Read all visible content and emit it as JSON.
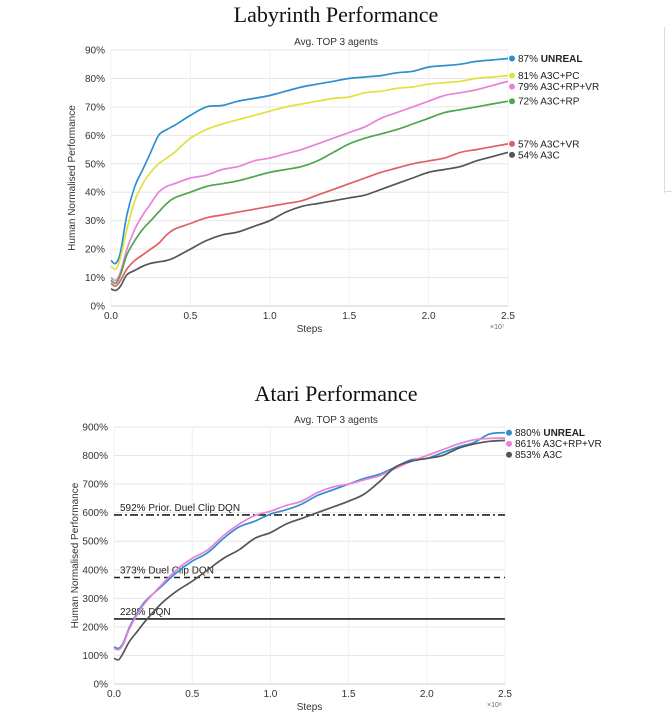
{
  "charts": [
    {
      "type": "line",
      "title": "Labyrinth Performance",
      "subtitle": "Avg. TOP 3 agents",
      "xlabel": "Steps",
      "ylabel": "Human Normalised Performance",
      "x_exponent": "×10⁷",
      "xlim": [
        0,
        2.5
      ],
      "ylim": [
        0,
        90
      ],
      "xticks": [
        "0.0",
        "0.5",
        "1.0",
        "1.5",
        "2.0",
        "2.5"
      ],
      "yticks": [
        "0%",
        "10%",
        "20%",
        "30%",
        "40%",
        "50%",
        "60%",
        "70%",
        "80%",
        "90%"
      ],
      "legend_placement": "right",
      "series": [
        {
          "name": "UNREAL",
          "label": "87%",
          "color": "#2e8fd0",
          "bold": true,
          "x": [
            0,
            0.03,
            0.06,
            0.1,
            0.15,
            0.2,
            0.25,
            0.3,
            0.35,
            0.4,
            0.5,
            0.6,
            0.7,
            0.8,
            0.9,
            1.0,
            1.1,
            1.2,
            1.3,
            1.4,
            1.5,
            1.6,
            1.7,
            1.8,
            1.9,
            2.0,
            2.1,
            2.2,
            2.3,
            2.4,
            2.5
          ],
          "y": [
            16,
            15,
            19,
            32,
            42,
            48,
            54,
            60,
            62,
            63.5,
            67,
            70,
            70.5,
            72,
            73,
            74,
            75.5,
            77,
            78,
            79,
            80,
            80.5,
            81,
            82,
            82.5,
            84,
            84.5,
            85,
            86,
            86.5,
            87
          ]
        },
        {
          "name": "A3C+PC",
          "label": "81%",
          "color": "#e0e040",
          "bold": false,
          "x": [
            0,
            0.03,
            0.06,
            0.1,
            0.15,
            0.2,
            0.25,
            0.3,
            0.35,
            0.4,
            0.5,
            0.6,
            0.7,
            0.8,
            0.9,
            1.0,
            1.1,
            1.2,
            1.3,
            1.4,
            1.5,
            1.6,
            1.7,
            1.8,
            1.9,
            2.0,
            2.1,
            2.2,
            2.3,
            2.4,
            2.5
          ],
          "y": [
            14,
            13,
            17,
            27,
            37,
            43,
            47,
            50,
            52,
            54,
            59,
            62,
            64,
            65.5,
            67,
            68.5,
            70,
            71,
            72,
            73,
            73.5,
            75,
            75.5,
            76.5,
            77,
            78,
            78.5,
            79,
            80,
            80.5,
            81
          ]
        },
        {
          "name": "A3C+RP+VR",
          "label": "79%",
          "color": "#e882d8",
          "bold": false,
          "x": [
            0,
            0.03,
            0.06,
            0.1,
            0.15,
            0.2,
            0.25,
            0.3,
            0.35,
            0.4,
            0.5,
            0.6,
            0.7,
            0.8,
            0.9,
            1.0,
            1.1,
            1.2,
            1.3,
            1.4,
            1.5,
            1.6,
            1.7,
            1.8,
            1.9,
            2.0,
            2.1,
            2.2,
            2.3,
            2.4,
            2.5
          ],
          "y": [
            10,
            9,
            12,
            20,
            27,
            32,
            36,
            40,
            42,
            43,
            45,
            46,
            48,
            49,
            51,
            52,
            53.5,
            55,
            57,
            59,
            61,
            63,
            66,
            68,
            70,
            72,
            74,
            75,
            76,
            77.5,
            79
          ]
        },
        {
          "name": "A3C+RP",
          "label": "72%",
          "color": "#4ca64c",
          "bold": false,
          "x": [
            0,
            0.03,
            0.06,
            0.1,
            0.15,
            0.2,
            0.25,
            0.3,
            0.35,
            0.4,
            0.5,
            0.6,
            0.7,
            0.8,
            0.9,
            1.0,
            1.1,
            1.2,
            1.3,
            1.4,
            1.5,
            1.6,
            1.7,
            1.8,
            1.9,
            2.0,
            2.1,
            2.2,
            2.3,
            2.4,
            2.5
          ],
          "y": [
            9,
            8,
            11,
            18,
            23,
            27,
            30,
            33,
            36,
            38,
            40,
            42,
            43,
            44,
            45.5,
            47,
            48,
            49,
            51,
            54,
            57,
            59,
            60.5,
            62,
            64,
            66,
            68,
            69,
            70,
            71,
            72
          ]
        },
        {
          "name": "A3C+VR",
          "label": "57%",
          "color": "#e06060",
          "bold": false,
          "x": [
            0,
            0.03,
            0.06,
            0.1,
            0.15,
            0.2,
            0.25,
            0.3,
            0.35,
            0.4,
            0.5,
            0.6,
            0.7,
            0.8,
            0.9,
            1.0,
            1.1,
            1.2,
            1.3,
            1.4,
            1.5,
            1.6,
            1.7,
            1.8,
            1.9,
            2.0,
            2.1,
            2.2,
            2.3,
            2.4,
            2.5
          ],
          "y": [
            8,
            7,
            9,
            13,
            16,
            18,
            20,
            22,
            25,
            27,
            29,
            31,
            32,
            33,
            34,
            35,
            36,
            37,
            39,
            41,
            43,
            45,
            47,
            48.5,
            50,
            51,
            52,
            54,
            55,
            56,
            57
          ]
        },
        {
          "name": "A3C",
          "label": "54%",
          "color": "#555555",
          "bold": false,
          "x": [
            0,
            0.03,
            0.06,
            0.1,
            0.15,
            0.2,
            0.25,
            0.3,
            0.35,
            0.4,
            0.5,
            0.6,
            0.7,
            0.8,
            0.9,
            1.0,
            1.1,
            1.2,
            1.3,
            1.4,
            1.5,
            1.6,
            1.7,
            1.8,
            1.9,
            2.0,
            2.1,
            2.2,
            2.3,
            2.4,
            2.5
          ],
          "y": [
            6,
            5.5,
            7,
            11,
            12.5,
            14,
            15,
            15.5,
            16,
            17,
            20,
            23,
            25,
            26,
            28,
            30,
            33,
            35,
            36,
            37,
            38,
            39,
            41,
            43,
            45,
            47,
            48,
            49,
            51,
            52.5,
            54
          ]
        }
      ]
    },
    {
      "type": "line",
      "title": "Atari Performance",
      "subtitle": "Avg. TOP 3 agents",
      "xlabel": "Steps",
      "ylabel": "Human Normalised Performance",
      "x_exponent": "×10⁸",
      "xlim": [
        0,
        2.5
      ],
      "ylim": [
        0,
        900
      ],
      "xticks": [
        "0.0",
        "0.5",
        "1.0",
        "1.5",
        "2.0",
        "2.5"
      ],
      "yticks": [
        "0%",
        "100%",
        "200%",
        "300%",
        "400%",
        "500%",
        "600%",
        "700%",
        "800%",
        "900%"
      ],
      "legend_placement": "right",
      "reference_lines": [
        {
          "y": 592,
          "label": "592% Prior. Duel Clip DQN",
          "style": "dashdot"
        },
        {
          "y": 373,
          "label": "373% Duel Clip DQN",
          "style": "dashed"
        },
        {
          "y": 228,
          "label": "228% DQN",
          "style": "solid"
        }
      ],
      "series": [
        {
          "name": "UNREAL",
          "label": "880%",
          "color": "#2e8fd0",
          "bold": true,
          "x": [
            0,
            0.03,
            0.06,
            0.1,
            0.15,
            0.2,
            0.3,
            0.4,
            0.5,
            0.6,
            0.7,
            0.8,
            0.9,
            1.0,
            1.1,
            1.2,
            1.3,
            1.4,
            1.5,
            1.6,
            1.7,
            1.8,
            1.9,
            2.0,
            2.1,
            2.2,
            2.3,
            2.4,
            2.5
          ],
          "y": [
            130,
            125,
            145,
            200,
            250,
            290,
            340,
            390,
            430,
            460,
            510,
            550,
            570,
            595,
            610,
            630,
            660,
            680,
            700,
            720,
            735,
            760,
            785,
            790,
            810,
            830,
            845,
            875,
            880
          ]
        },
        {
          "name": "A3C+RP+VR",
          "label": "861%",
          "color": "#e882d8",
          "bold": false,
          "x": [
            0,
            0.03,
            0.06,
            0.1,
            0.15,
            0.2,
            0.3,
            0.4,
            0.5,
            0.6,
            0.7,
            0.8,
            0.9,
            1.0,
            1.1,
            1.2,
            1.3,
            1.4,
            1.5,
            1.6,
            1.7,
            1.8,
            1.9,
            2.0,
            2.1,
            2.2,
            2.3,
            2.4,
            2.5
          ],
          "y": [
            125,
            120,
            140,
            195,
            245,
            285,
            345,
            400,
            440,
            470,
            520,
            560,
            590,
            605,
            625,
            640,
            670,
            690,
            700,
            715,
            730,
            755,
            780,
            800,
            820,
            840,
            855,
            860,
            861
          ]
        },
        {
          "name": "A3C",
          "label": "853%",
          "color": "#555555",
          "bold": false,
          "x": [
            0,
            0.03,
            0.06,
            0.1,
            0.15,
            0.2,
            0.3,
            0.4,
            0.5,
            0.6,
            0.7,
            0.8,
            0.9,
            1.0,
            1.1,
            1.2,
            1.3,
            1.4,
            1.5,
            1.6,
            1.7,
            1.8,
            1.9,
            2.0,
            2.1,
            2.2,
            2.3,
            2.4,
            2.5
          ],
          "y": [
            90,
            85,
            110,
            150,
            185,
            220,
            280,
            325,
            360,
            400,
            440,
            470,
            510,
            530,
            560,
            580,
            600,
            620,
            640,
            665,
            710,
            760,
            780,
            790,
            800,
            825,
            840,
            850,
            853
          ]
        }
      ]
    }
  ]
}
